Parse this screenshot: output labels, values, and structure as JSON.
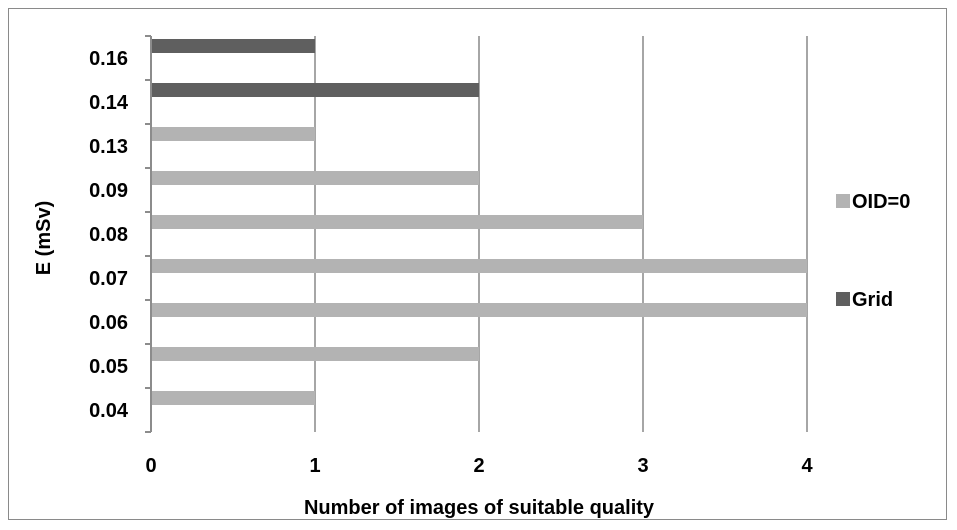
{
  "chart_data": {
    "type": "bar",
    "orientation": "horizontal",
    "categories": [
      "0.04",
      "0.05",
      "0.06",
      "0.07",
      "0.08",
      "0.09",
      "0.13",
      "0.14",
      "0.16"
    ],
    "series": [
      {
        "name": "OID=0",
        "color": "#b3b3b3",
        "values": [
          1,
          2,
          4,
          4,
          3,
          2,
          1,
          null,
          null
        ]
      },
      {
        "name": "Grid",
        "color": "#5f5f5f",
        "values": [
          null,
          null,
          null,
          null,
          null,
          null,
          null,
          2,
          1
        ]
      }
    ],
    "xlabel": "Number of images of suitable quality",
    "ylabel": "E (mSv)",
    "xlim": [
      0,
      4
    ],
    "xticks": [
      "0",
      "1",
      "2",
      "3",
      "4"
    ],
    "grid": "vertical",
    "legend_position": "right"
  }
}
